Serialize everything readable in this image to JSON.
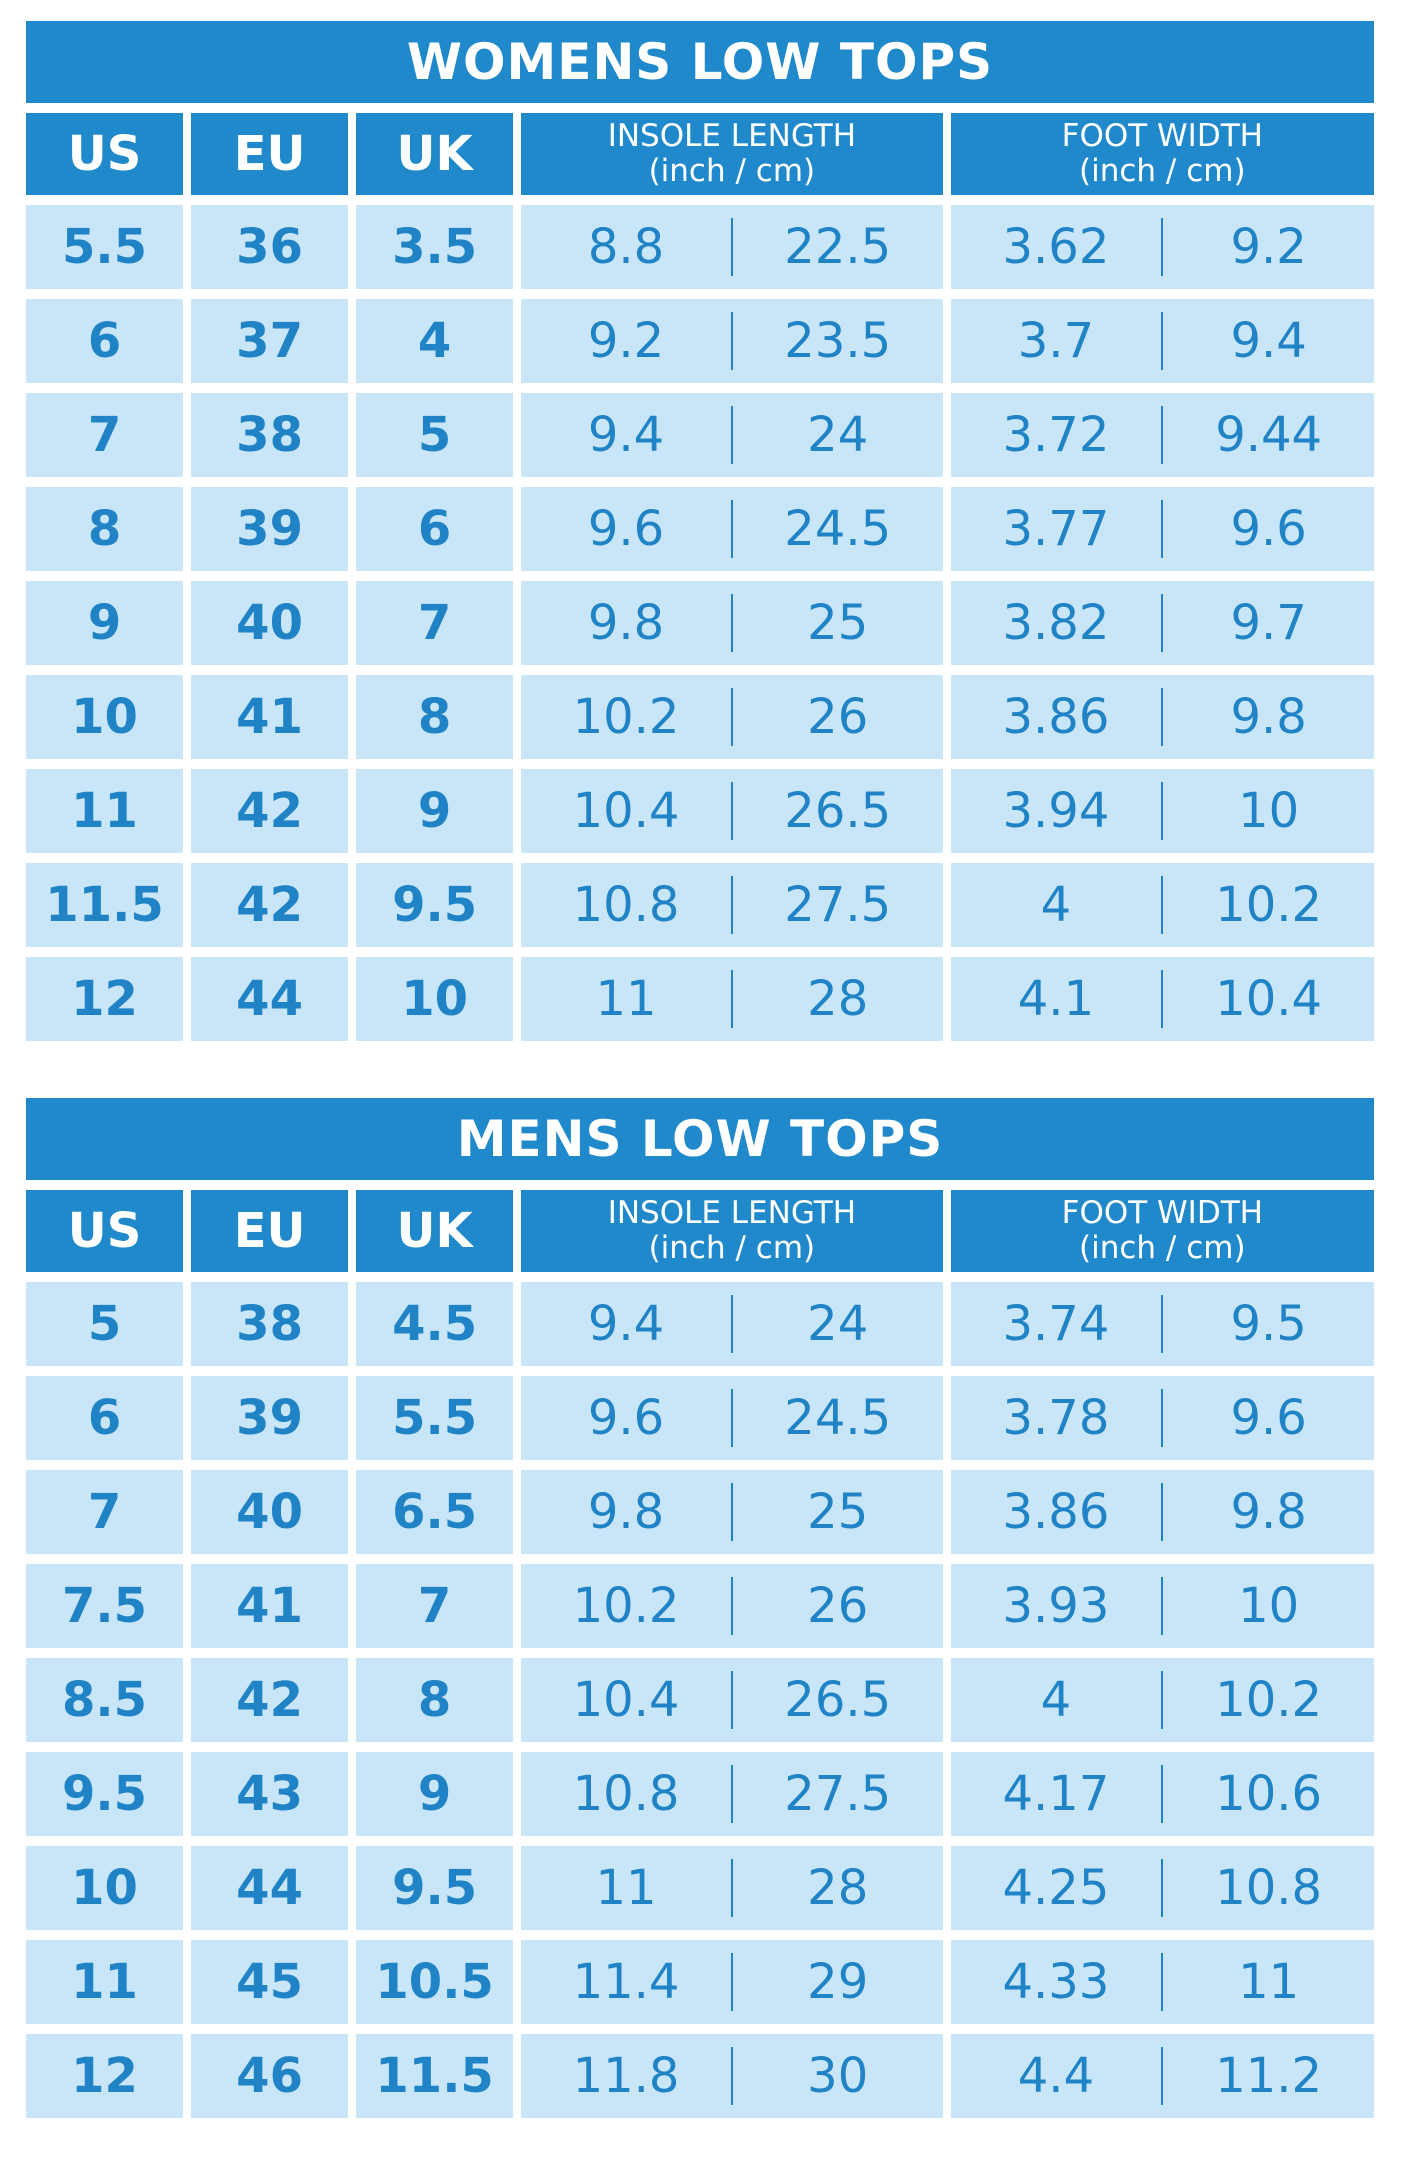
{
  "tables": [
    {
      "title": "WOMENS LOW TOPS",
      "headers": {
        "us": "US",
        "eu": "EU",
        "uk": "UK",
        "insole": "INSOLE LENGTH",
        "insole_unit": "(inch / cm)",
        "width": "FOOT WIDTH",
        "width_unit": "(inch / cm)"
      },
      "rows": [
        [
          "5.5",
          "36",
          "3.5",
          "8.8",
          "22.5",
          "3.62",
          "9.2"
        ],
        [
          "6",
          "37",
          "4",
          "9.2",
          "23.5",
          "3.7",
          "9.4"
        ],
        [
          "7",
          "38",
          "5",
          "9.4",
          "24",
          "3.72",
          "9.44"
        ],
        [
          "8",
          "39",
          "6",
          "9.6",
          "24.5",
          "3.77",
          "9.6"
        ],
        [
          "9",
          "40",
          "7",
          "9.8",
          "25",
          "3.82",
          "9.7"
        ],
        [
          "10",
          "41",
          "8",
          "10.2",
          "26",
          "3.86",
          "9.8"
        ],
        [
          "11",
          "42",
          "9",
          "10.4",
          "26.5",
          "3.94",
          "10"
        ],
        [
          "11.5",
          "42",
          "9.5",
          "10.8",
          "27.5",
          "4",
          "10.2"
        ],
        [
          "12",
          "44",
          "10",
          "11",
          "28",
          "4.1",
          "10.4"
        ]
      ]
    },
    {
      "title": "MENS LOW TOPS",
      "headers": {
        "us": "US",
        "eu": "EU",
        "uk": "UK",
        "insole": "INSOLE LENGTH",
        "insole_unit": "(inch / cm)",
        "width": "FOOT WIDTH",
        "width_unit": "(inch / cm)"
      },
      "rows": [
        [
          "5",
          "38",
          "4.5",
          "9.4",
          "24",
          "3.74",
          "9.5"
        ],
        [
          "6",
          "39",
          "5.5",
          "9.6",
          "24.5",
          "3.78",
          "9.6"
        ],
        [
          "7",
          "40",
          "6.5",
          "9.8",
          "25",
          "3.86",
          "9.8"
        ],
        [
          "7.5",
          "41",
          "7",
          "10.2",
          "26",
          "3.93",
          "10"
        ],
        [
          "8.5",
          "42",
          "8",
          "10.4",
          "26.5",
          "4",
          "10.2"
        ],
        [
          "9.5",
          "43",
          "9",
          "10.8",
          "27.5",
          "4.17",
          "10.6"
        ],
        [
          "10",
          "44",
          "9.5",
          "11",
          "28",
          "4.25",
          "10.8"
        ],
        [
          "11",
          "45",
          "10.5",
          "11.4",
          "29",
          "4.33",
          "11"
        ],
        [
          "12",
          "46",
          "11.5",
          "11.8",
          "30",
          "4.4",
          "11.2"
        ]
      ]
    }
  ]
}
